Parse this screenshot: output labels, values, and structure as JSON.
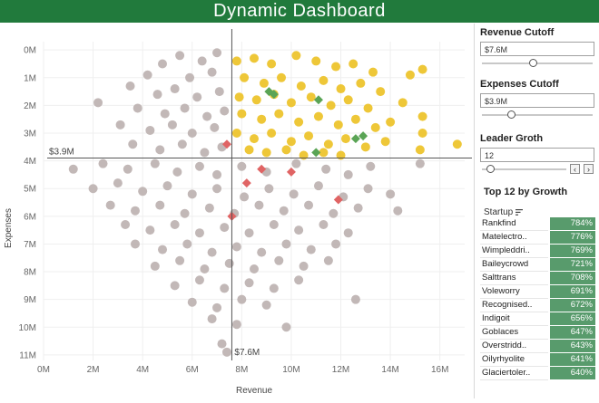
{
  "title": "Dynamic Dashboard",
  "colors": {
    "title_bar": "#217a3c",
    "gray_points": "#bdb2b1",
    "yellow_points": "#edc227",
    "red_points": "#e06464",
    "green_points": "#5aa455",
    "growth_bar": "#217a3c"
  },
  "chart_data": {
    "type": "scatter",
    "xlabel": "Revenue",
    "ylabel": "Expenses",
    "x_ticks": [
      "0M",
      "2M",
      "4M",
      "6M",
      "8M",
      "10M",
      "12M",
      "14M",
      "16M"
    ],
    "y_ticks": [
      "0M",
      "1M",
      "2M",
      "3M",
      "4M",
      "5M",
      "6M",
      "7M",
      "8M",
      "9M",
      "10M",
      "11M"
    ],
    "xlim": [
      0,
      17
    ],
    "ylim": [
      11.2,
      -0.3
    ],
    "y_reversed": true,
    "grid": true,
    "reference_lines": {
      "x": {
        "value": 7.6,
        "label": "$7.6M"
      },
      "y": {
        "value": 3.9,
        "label": "$3.9M"
      }
    },
    "yellow_points": [
      {
        "x": 7.8,
        "y": 0.4
      },
      {
        "x": 8.5,
        "y": 0.3
      },
      {
        "x": 9.2,
        "y": 0.5
      },
      {
        "x": 10.2,
        "y": 0.2
      },
      {
        "x": 11.0,
        "y": 0.4
      },
      {
        "x": 11.8,
        "y": 0.6
      },
      {
        "x": 12.5,
        "y": 0.5
      },
      {
        "x": 13.3,
        "y": 0.8
      },
      {
        "x": 14.8,
        "y": 0.9
      },
      {
        "x": 15.3,
        "y": 0.7
      },
      {
        "x": 8.1,
        "y": 1.0
      },
      {
        "x": 8.9,
        "y": 1.2
      },
      {
        "x": 9.6,
        "y": 1.0
      },
      {
        "x": 10.4,
        "y": 1.3
      },
      {
        "x": 11.3,
        "y": 1.1
      },
      {
        "x": 12.0,
        "y": 1.4
      },
      {
        "x": 12.8,
        "y": 1.2
      },
      {
        "x": 13.6,
        "y": 1.5
      },
      {
        "x": 7.9,
        "y": 1.7
      },
      {
        "x": 8.6,
        "y": 1.8
      },
      {
        "x": 9.3,
        "y": 1.6
      },
      {
        "x": 10.0,
        "y": 1.9
      },
      {
        "x": 10.8,
        "y": 1.7
      },
      {
        "x": 11.6,
        "y": 2.0
      },
      {
        "x": 12.3,
        "y": 1.8
      },
      {
        "x": 13.1,
        "y": 2.1
      },
      {
        "x": 8.0,
        "y": 2.3
      },
      {
        "x": 8.8,
        "y": 2.5
      },
      {
        "x": 9.5,
        "y": 2.3
      },
      {
        "x": 10.3,
        "y": 2.6
      },
      {
        "x": 11.1,
        "y": 2.4
      },
      {
        "x": 11.9,
        "y": 2.7
      },
      {
        "x": 12.6,
        "y": 2.5
      },
      {
        "x": 13.4,
        "y": 2.8
      },
      {
        "x": 14.0,
        "y": 2.6
      },
      {
        "x": 15.3,
        "y": 2.4
      },
      {
        "x": 7.8,
        "y": 3.0
      },
      {
        "x": 8.5,
        "y": 3.2
      },
      {
        "x": 9.2,
        "y": 3.0
      },
      {
        "x": 10.0,
        "y": 3.3
      },
      {
        "x": 10.7,
        "y": 3.1
      },
      {
        "x": 11.5,
        "y": 3.4
      },
      {
        "x": 12.2,
        "y": 3.2
      },
      {
        "x": 13.0,
        "y": 3.5
      },
      {
        "x": 13.8,
        "y": 3.3
      },
      {
        "x": 15.2,
        "y": 3.6
      },
      {
        "x": 16.7,
        "y": 3.4
      },
      {
        "x": 8.3,
        "y": 3.6
      },
      {
        "x": 9.0,
        "y": 3.7
      },
      {
        "x": 9.8,
        "y": 3.6
      },
      {
        "x": 10.5,
        "y": 3.8
      },
      {
        "x": 11.3,
        "y": 3.7
      },
      {
        "x": 12.0,
        "y": 3.8
      },
      {
        "x": 14.5,
        "y": 1.9
      },
      {
        "x": 15.3,
        "y": 3.0
      }
    ],
    "gray_points": [
      {
        "x": 5.5,
        "y": 0.2
      },
      {
        "x": 6.4,
        "y": 0.4
      },
      {
        "x": 7.0,
        "y": 0.1
      },
      {
        "x": 4.8,
        "y": 0.5
      },
      {
        "x": 4.2,
        "y": 0.9
      },
      {
        "x": 5.9,
        "y": 1.0
      },
      {
        "x": 6.8,
        "y": 0.8
      },
      {
        "x": 3.5,
        "y": 1.3
      },
      {
        "x": 4.6,
        "y": 1.6
      },
      {
        "x": 5.3,
        "y": 1.4
      },
      {
        "x": 6.2,
        "y": 1.7
      },
      {
        "x": 7.1,
        "y": 1.5
      },
      {
        "x": 2.2,
        "y": 1.9
      },
      {
        "x": 3.8,
        "y": 2.1
      },
      {
        "x": 4.9,
        "y": 2.3
      },
      {
        "x": 5.7,
        "y": 2.1
      },
      {
        "x": 6.6,
        "y": 2.4
      },
      {
        "x": 7.3,
        "y": 2.2
      },
      {
        "x": 3.1,
        "y": 2.7
      },
      {
        "x": 4.3,
        "y": 2.9
      },
      {
        "x": 5.2,
        "y": 2.7
      },
      {
        "x": 6.0,
        "y": 3.0
      },
      {
        "x": 6.9,
        "y": 2.8
      },
      {
        "x": 3.6,
        "y": 3.4
      },
      {
        "x": 4.7,
        "y": 3.6
      },
      {
        "x": 5.6,
        "y": 3.4
      },
      {
        "x": 6.5,
        "y": 3.7
      },
      {
        "x": 7.2,
        "y": 3.5
      },
      {
        "x": 1.2,
        "y": 4.3
      },
      {
        "x": 2.4,
        "y": 4.1
      },
      {
        "x": 3.4,
        "y": 4.3
      },
      {
        "x": 4.5,
        "y": 4.1
      },
      {
        "x": 5.4,
        "y": 4.4
      },
      {
        "x": 6.3,
        "y": 4.2
      },
      {
        "x": 7.0,
        "y": 4.5
      },
      {
        "x": 8.0,
        "y": 4.2
      },
      {
        "x": 9.0,
        "y": 4.4
      },
      {
        "x": 10.2,
        "y": 4.1
      },
      {
        "x": 11.4,
        "y": 4.3
      },
      {
        "x": 12.3,
        "y": 4.5
      },
      {
        "x": 13.2,
        "y": 4.2
      },
      {
        "x": 15.2,
        "y": 4.1
      },
      {
        "x": 2.0,
        "y": 5.0
      },
      {
        "x": 3.0,
        "y": 4.8
      },
      {
        "x": 4.0,
        "y": 5.1
      },
      {
        "x": 5.0,
        "y": 4.9
      },
      {
        "x": 6.0,
        "y": 5.2
      },
      {
        "x": 7.0,
        "y": 5.0
      },
      {
        "x": 8.1,
        "y": 5.3
      },
      {
        "x": 9.1,
        "y": 5.0
      },
      {
        "x": 10.1,
        "y": 5.2
      },
      {
        "x": 11.1,
        "y": 4.9
      },
      {
        "x": 12.1,
        "y": 5.3
      },
      {
        "x": 13.1,
        "y": 5.0
      },
      {
        "x": 14.0,
        "y": 5.2
      },
      {
        "x": 2.7,
        "y": 5.6
      },
      {
        "x": 3.7,
        "y": 5.8
      },
      {
        "x": 4.7,
        "y": 5.6
      },
      {
        "x": 5.7,
        "y": 5.9
      },
      {
        "x": 6.7,
        "y": 5.7
      },
      {
        "x": 7.7,
        "y": 5.9
      },
      {
        "x": 8.7,
        "y": 5.6
      },
      {
        "x": 9.7,
        "y": 5.8
      },
      {
        "x": 10.7,
        "y": 5.6
      },
      {
        "x": 11.7,
        "y": 5.9
      },
      {
        "x": 12.7,
        "y": 5.7
      },
      {
        "x": 14.3,
        "y": 5.8
      },
      {
        "x": 3.3,
        "y": 6.3
      },
      {
        "x": 4.3,
        "y": 6.5
      },
      {
        "x": 5.3,
        "y": 6.3
      },
      {
        "x": 6.3,
        "y": 6.6
      },
      {
        "x": 7.3,
        "y": 6.4
      },
      {
        "x": 8.3,
        "y": 6.6
      },
      {
        "x": 9.3,
        "y": 6.3
      },
      {
        "x": 10.3,
        "y": 6.5
      },
      {
        "x": 11.3,
        "y": 6.3
      },
      {
        "x": 12.3,
        "y": 6.6
      },
      {
        "x": 3.7,
        "y": 7.0
      },
      {
        "x": 4.8,
        "y": 7.2
      },
      {
        "x": 5.8,
        "y": 7.0
      },
      {
        "x": 6.8,
        "y": 7.3
      },
      {
        "x": 7.8,
        "y": 7.1
      },
      {
        "x": 8.8,
        "y": 7.3
      },
      {
        "x": 9.8,
        "y": 7.0
      },
      {
        "x": 10.8,
        "y": 7.2
      },
      {
        "x": 11.8,
        "y": 7.0
      },
      {
        "x": 4.5,
        "y": 7.8
      },
      {
        "x": 5.5,
        "y": 7.6
      },
      {
        "x": 6.5,
        "y": 7.9
      },
      {
        "x": 7.5,
        "y": 7.7
      },
      {
        "x": 8.5,
        "y": 7.9
      },
      {
        "x": 9.5,
        "y": 7.6
      },
      {
        "x": 10.5,
        "y": 7.8
      },
      {
        "x": 11.5,
        "y": 7.6
      },
      {
        "x": 5.3,
        "y": 8.5
      },
      {
        "x": 6.3,
        "y": 8.3
      },
      {
        "x": 7.3,
        "y": 8.6
      },
      {
        "x": 8.3,
        "y": 8.4
      },
      {
        "x": 9.3,
        "y": 8.6
      },
      {
        "x": 10.3,
        "y": 8.3
      },
      {
        "x": 6.0,
        "y": 9.1
      },
      {
        "x": 7.0,
        "y": 9.3
      },
      {
        "x": 8.0,
        "y": 9.0
      },
      {
        "x": 9.0,
        "y": 9.2
      },
      {
        "x": 12.6,
        "y": 9.0
      },
      {
        "x": 6.8,
        "y": 9.7
      },
      {
        "x": 7.8,
        "y": 9.9
      },
      {
        "x": 9.8,
        "y": 10.0
      },
      {
        "x": 7.2,
        "y": 10.6
      },
      {
        "x": 7.4,
        "y": 10.9
      }
    ],
    "red_points": [
      {
        "x": 7.4,
        "y": 3.4
      },
      {
        "x": 8.8,
        "y": 4.3
      },
      {
        "x": 10.0,
        "y": 4.4
      },
      {
        "x": 8.2,
        "y": 4.8
      },
      {
        "x": 11.9,
        "y": 5.4
      },
      {
        "x": 7.6,
        "y": 6.0
      }
    ],
    "green_points": [
      {
        "x": 9.1,
        "y": 1.5
      },
      {
        "x": 9.3,
        "y": 1.6
      },
      {
        "x": 11.1,
        "y": 1.8
      },
      {
        "x": 12.6,
        "y": 3.2
      },
      {
        "x": 12.9,
        "y": 3.1
      },
      {
        "x": 11.0,
        "y": 3.7
      }
    ]
  },
  "controls": {
    "revenue_cutoff": {
      "label": "Revenue Cutoff",
      "value": "$7.6M",
      "level": 0.46
    },
    "expenses_cutoff": {
      "label": "Expenses Cutoff",
      "value": "$3.9M",
      "level": 0.26
    },
    "leader_growth": {
      "label": "Leader Groth",
      "value": "12",
      "level": 0.1,
      "prev_icon": "chevron-left-icon",
      "next_icon": "chevron-right-icon"
    }
  },
  "top_table": {
    "title": "Top 12 by Growth",
    "column_header": "Startup",
    "sort_icon": "sort-descending-icon",
    "rows": [
      {
        "name": "Rankfind",
        "value": "784%",
        "level": 0.784
      },
      {
        "name": "Matelectro..",
        "value": "776%",
        "level": 0.776
      },
      {
        "name": "Wimpleddri..",
        "value": "769%",
        "level": 0.769
      },
      {
        "name": "Baileycrowd",
        "value": "721%",
        "level": 0.721
      },
      {
        "name": "Salttrans",
        "value": "708%",
        "level": 0.708
      },
      {
        "name": "Voleworry",
        "value": "691%",
        "level": 0.691
      },
      {
        "name": "Recognised..",
        "value": "672%",
        "level": 0.672
      },
      {
        "name": "Indigoit",
        "value": "656%",
        "level": 0.656
      },
      {
        "name": "Goblaces",
        "value": "647%",
        "level": 0.647
      },
      {
        "name": "Overstridd..",
        "value": "643%",
        "level": 0.643
      },
      {
        "name": "Oilyrhyolite",
        "value": "641%",
        "level": 0.641
      },
      {
        "name": "Glaciertoler..",
        "value": "640%",
        "level": 0.64
      }
    ]
  }
}
